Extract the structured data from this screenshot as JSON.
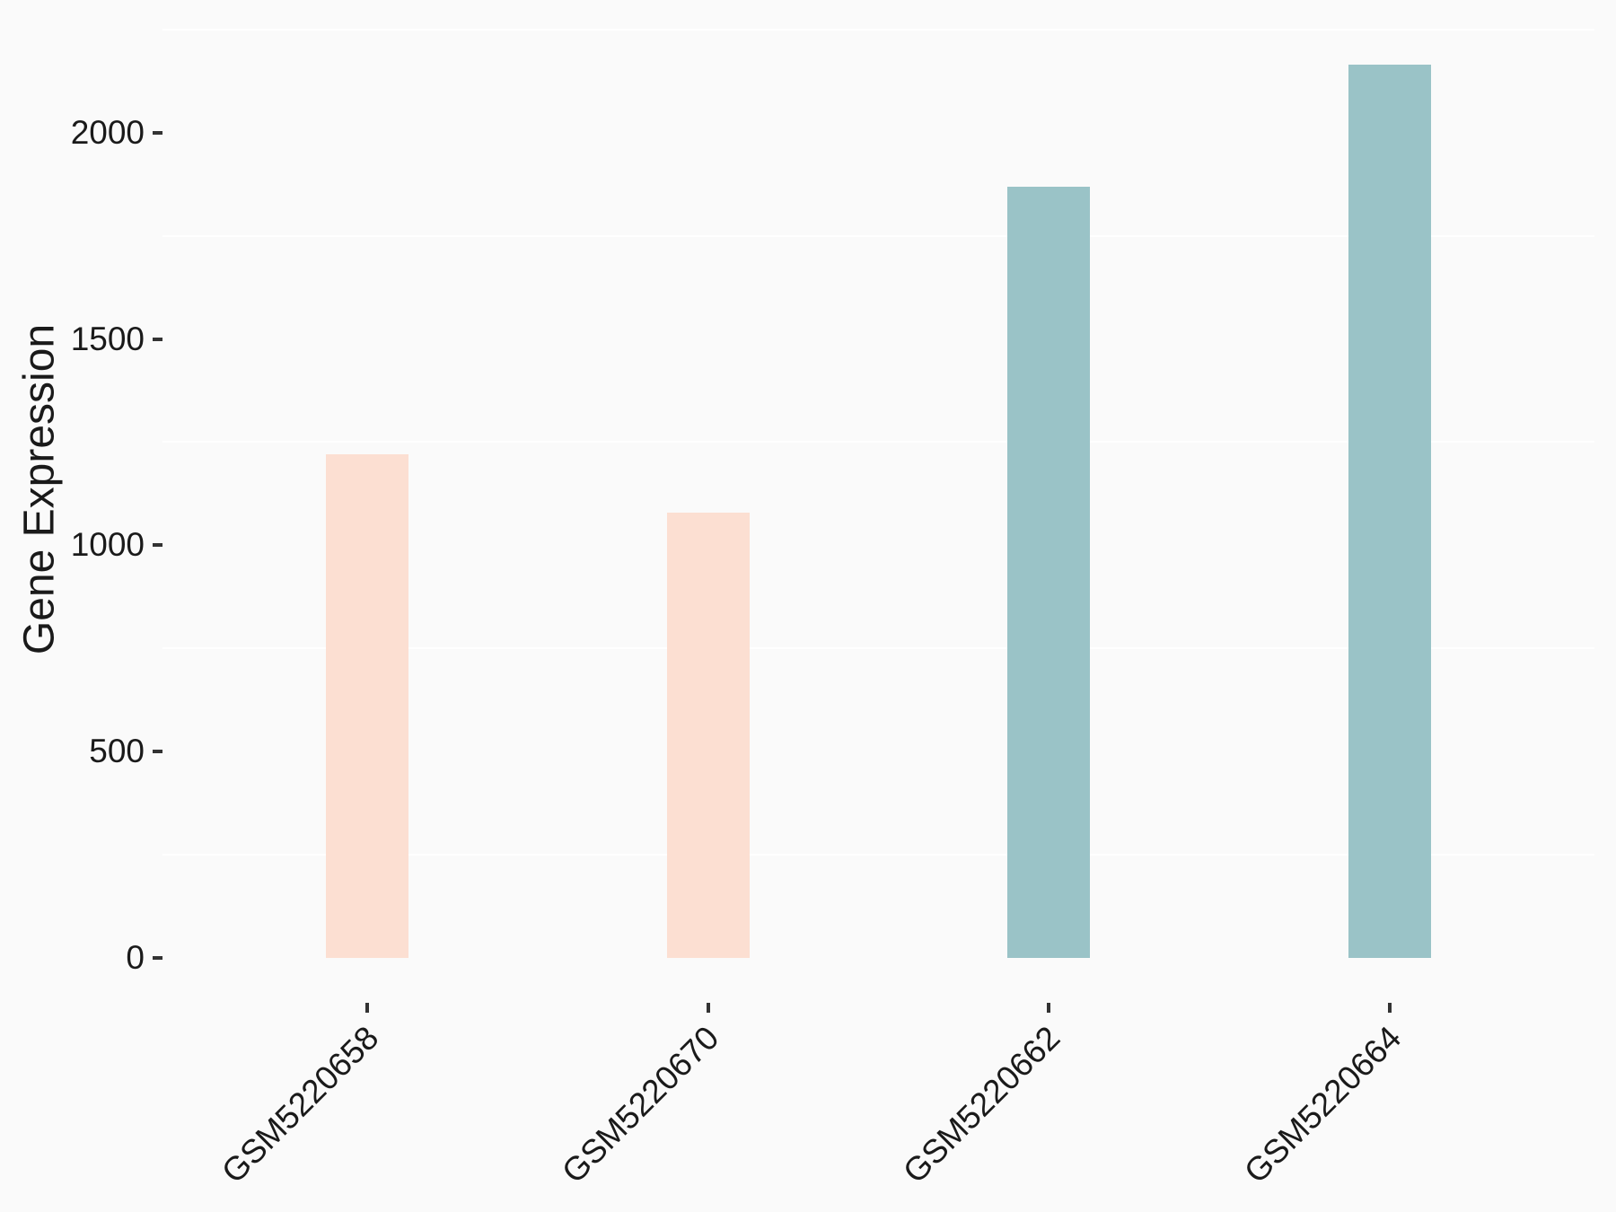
{
  "chart_data": {
    "type": "bar",
    "title": "",
    "xlabel": "",
    "ylabel": "Gene Expression",
    "categories": [
      "GSM5220658",
      "GSM5220670",
      "GSM5220662",
      "GSM5220664"
    ],
    "values": [
      1220,
      1080,
      1870,
      2165
    ],
    "bar_colors": [
      "#fcdfd2",
      "#fcdfd2",
      "#9ac3c7",
      "#9ac3c7"
    ],
    "y_ticks": [
      0,
      500,
      1000,
      1500,
      2000
    ],
    "y_minor_gridlines": [
      250,
      750,
      1250,
      1750,
      2250
    ],
    "ylim": [
      -109,
      2278
    ],
    "grid": "minor-horizontal-only",
    "legend": "none",
    "background_color": "#fafafa",
    "gridline_color": "#ffffff",
    "tick_mark_color": "#333333",
    "text_color": "#1a1a1a",
    "x_label_angle_deg": 45
  }
}
